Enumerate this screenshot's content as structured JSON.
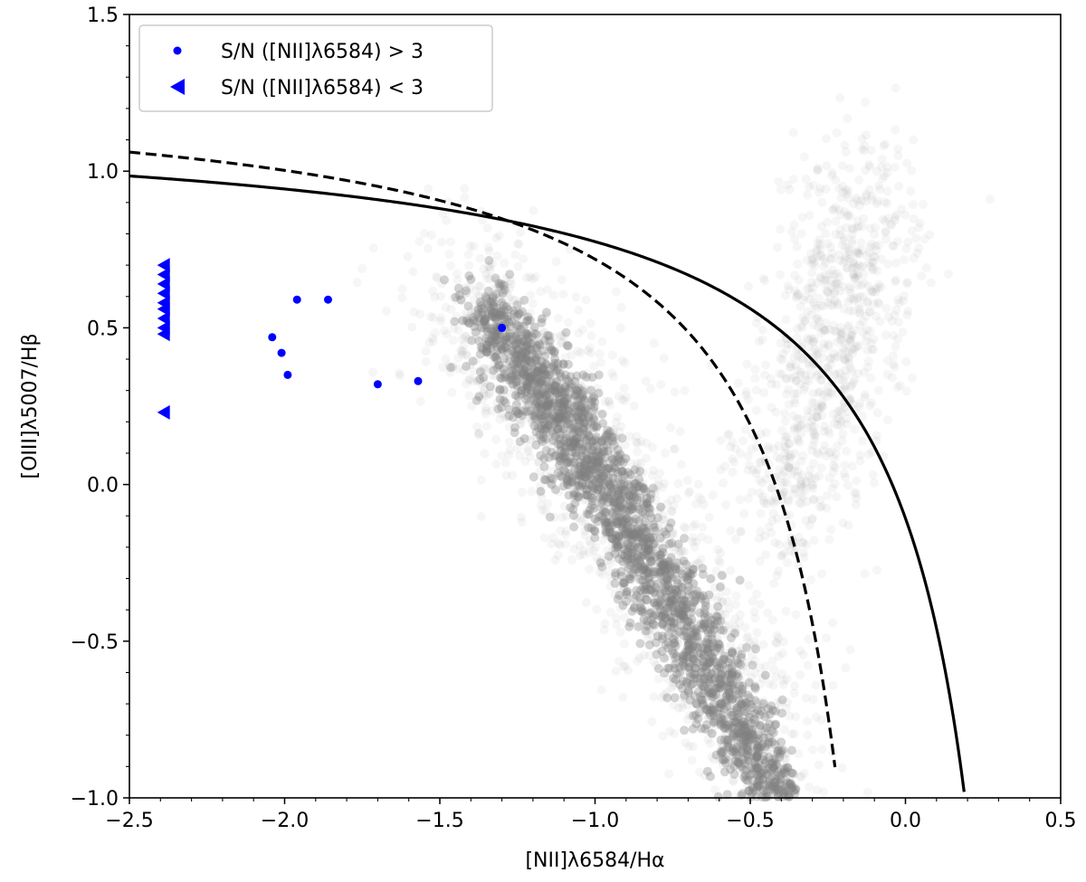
{
  "chart_data": {
    "type": "scatter",
    "xlabel": "[NII]λ6584/Hα",
    "ylabel": "[OIII]λ5007/Hβ",
    "xlim": [
      -2.5,
      0.5
    ],
    "ylim": [
      -1.0,
      1.5
    ],
    "x_ticks": [
      -2.5,
      -2.0,
      -1.5,
      -1.0,
      -0.5,
      0.0,
      0.5
    ],
    "x_tick_labels": [
      "−2.5",
      "−2.0",
      "−1.5",
      "−1.0",
      "−0.5",
      "0.0",
      "0.5"
    ],
    "y_ticks": [
      -1.0,
      -0.5,
      0.0,
      0.5,
      1.0,
      1.5
    ],
    "y_tick_labels": [
      "−1.0",
      "−0.5",
      "0.0",
      "0.5",
      "1.0",
      "1.5"
    ],
    "grid": false,
    "legend_position": "top-left",
    "legend": [
      {
        "label": "S/N ([NII]λ6584) > 3",
        "marker": "circle",
        "color": "#0000ff"
      },
      {
        "label": "S/N ([NII]λ6584) < 3",
        "marker": "left-triangle",
        "color": "#0000ff"
      }
    ],
    "series": [
      {
        "name": "S/N ([NII]λ6584) > 3",
        "marker": "circle",
        "color": "#0000ff",
        "points": [
          {
            "x": -2.04,
            "y": 0.47
          },
          {
            "x": -2.01,
            "y": 0.42
          },
          {
            "x": -1.99,
            "y": 0.35
          },
          {
            "x": -1.96,
            "y": 0.59
          },
          {
            "x": -1.86,
            "y": 0.59
          },
          {
            "x": -1.7,
            "y": 0.32
          },
          {
            "x": -1.57,
            "y": 0.33
          },
          {
            "x": -1.3,
            "y": 0.5
          }
        ]
      },
      {
        "name": "S/N ([NII]λ6584) < 3",
        "marker": "left-triangle",
        "color": "#0000ff",
        "points": [
          {
            "x": -2.39,
            "y": 0.7
          },
          {
            "x": -2.39,
            "y": 0.67
          },
          {
            "x": -2.39,
            "y": 0.64
          },
          {
            "x": -2.39,
            "y": 0.61
          },
          {
            "x": -2.39,
            "y": 0.58
          },
          {
            "x": -2.39,
            "y": 0.56
          },
          {
            "x": -2.39,
            "y": 0.53
          },
          {
            "x": -2.39,
            "y": 0.5
          },
          {
            "x": -2.39,
            "y": 0.48
          },
          {
            "x": -2.39,
            "y": 0.23
          }
        ]
      }
    ],
    "curves": [
      {
        "style": "solid",
        "color": "#000000",
        "equation": "y = 0.61/(x - 0.47) + 1.19"
      },
      {
        "style": "dashed",
        "color": "#000000",
        "equation": "y = 0.61/(x - 0.05) + 1.3"
      }
    ],
    "background_population": {
      "color": "#808080",
      "description_visible": false
    }
  }
}
